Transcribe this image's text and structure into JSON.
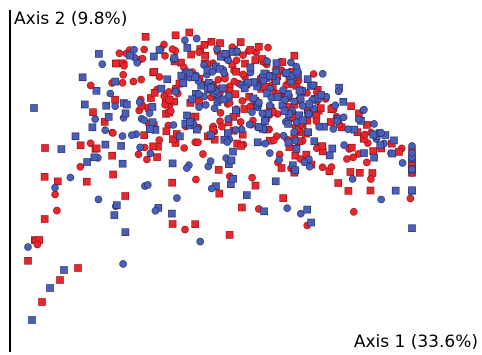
{
  "chart_data": {
    "type": "scatter",
    "title": "",
    "xlabel": "Axis 1 (33.6%)",
    "ylabel": "Axis 2 (9.8%)",
    "xlim": [
      -1.0,
      1.0
    ],
    "ylim": [
      -1.0,
      1.0
    ],
    "grid": false,
    "legend": "none",
    "marker_size": 7,
    "series": [
      {
        "color": "#e8262d",
        "stroke": "#8a1010",
        "markers": [
          "square",
          "circle"
        ],
        "seed": 11,
        "count": 340
      },
      {
        "color": "#4a5fb5",
        "stroke": "#1e2a6a",
        "markers": [
          "square",
          "circle"
        ],
        "seed": 29,
        "count": 300
      }
    ]
  }
}
